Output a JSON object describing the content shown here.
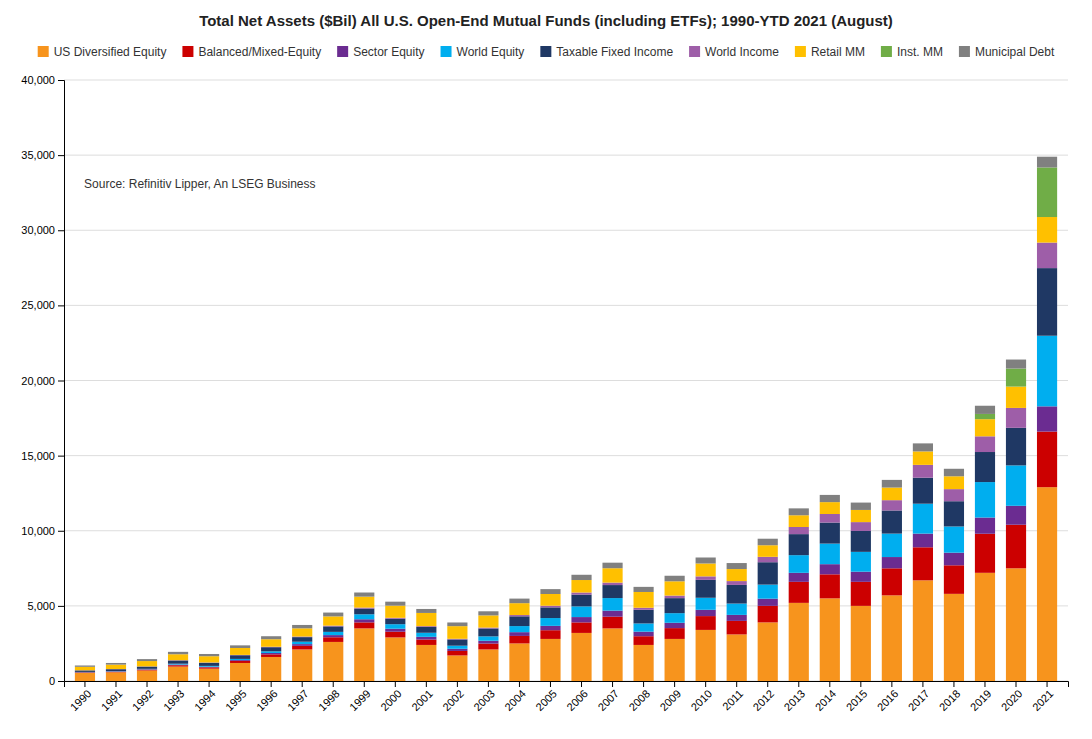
{
  "chart_data": {
    "type": "bar",
    "stacked": true,
    "title": "Total Net Assets ($Bil) All U.S. Open-End Mutual Funds (including ETFs); 1990-YTD 2021 (August)",
    "annotations": [
      "Source: Refinitiv Lipper, An LSEG Business"
    ],
    "categories": [
      "1990",
      "1991",
      "1992",
      "1993",
      "1994",
      "1995",
      "1996",
      "1997",
      "1998",
      "1999",
      "2000",
      "2001",
      "2002",
      "2003",
      "2004",
      "2005",
      "2006",
      "2007",
      "2008",
      "2009",
      "2010",
      "2011",
      "2012",
      "2013",
      "2014",
      "2015",
      "2016",
      "2017",
      "2018",
      "2019",
      "2020",
      "2021"
    ],
    "series": [
      {
        "name": "US Diversified Equity",
        "color": "#F7941D",
        "values": [
          540,
          580,
          700,
          960,
          820,
          1200,
          1600,
          2100,
          2600,
          3500,
          2900,
          2400,
          1700,
          2100,
          2500,
          2800,
          3200,
          3500,
          2400,
          2800,
          3400,
          3100,
          3900,
          5200,
          5500,
          5000,
          5700,
          6700,
          5800,
          7200,
          7500,
          12900
        ]
      },
      {
        "name": "Balanced/Mixed-Equity",
        "color": "#CC0000",
        "values": [
          30,
          40,
          55,
          90,
          90,
          130,
          175,
          240,
          310,
          400,
          380,
          360,
          300,
          390,
          500,
          580,
          700,
          780,
          580,
          720,
          920,
          900,
          1100,
          1400,
          1600,
          1600,
          1800,
          2200,
          1900,
          2600,
          2900,
          3700
        ]
      },
      {
        "name": "Sector Equity",
        "color": "#6B2C91",
        "values": [
          20,
          25,
          30,
          45,
          40,
          60,
          90,
          115,
          145,
          210,
          200,
          180,
          145,
          190,
          250,
          290,
          355,
          405,
          305,
          355,
          420,
          400,
          480,
          600,
          675,
          675,
          750,
          910,
          840,
          1080,
          1260,
          1680
        ]
      },
      {
        "name": "World Equity",
        "color": "#00AEEF",
        "values": [
          15,
          20,
          25,
          55,
          55,
          80,
          110,
          160,
          215,
          330,
          300,
          270,
          205,
          290,
          405,
          520,
          710,
          835,
          545,
          640,
          800,
          755,
          935,
          1175,
          1370,
          1320,
          1560,
          1990,
          1745,
          2360,
          2690,
          4700
        ]
      },
      {
        "name": "Taxable Fixed Income",
        "color": "#1F3864",
        "values": [
          100,
          120,
          150,
          215,
          210,
          245,
          275,
          305,
          365,
          380,
          365,
          385,
          415,
          525,
          650,
          710,
          785,
          865,
          910,
          1000,
          1190,
          1240,
          1490,
          1400,
          1400,
          1390,
          1540,
          1730,
          1680,
          2000,
          2500,
          4500
        ]
      },
      {
        "name": "World Income",
        "color": "#9E5EA8",
        "values": [
          8,
          10,
          12,
          20,
          18,
          22,
          30,
          40,
          50,
          65,
          60,
          55,
          45,
          60,
          85,
          110,
          140,
          165,
          135,
          170,
          235,
          255,
          360,
          475,
          570,
          590,
          685,
          855,
          805,
          1045,
          1325,
          1700
        ]
      },
      {
        "name": "Retail MM",
        "color": "#FFC000",
        "values": [
          230,
          295,
          355,
          395,
          415,
          460,
          500,
          545,
          615,
          730,
          810,
          880,
          840,
          810,
          790,
          780,
          830,
          955,
          1050,
          950,
          855,
          800,
          770,
          780,
          790,
          810,
          840,
          895,
          855,
          1140,
          1420,
          1700
        ]
      },
      {
        "name": "Inst. MM",
        "color": "#70AD47",
        "values": [
          0,
          0,
          0,
          0,
          0,
          0,
          0,
          0,
          0,
          0,
          0,
          0,
          0,
          0,
          0,
          0,
          0,
          0,
          0,
          0,
          0,
          0,
          0,
          0,
          0,
          0,
          0,
          0,
          0,
          350,
          1200,
          3300
        ]
      },
      {
        "name": "Municipal Debt",
        "color": "#808080",
        "values": [
          90,
          110,
          130,
          160,
          150,
          175,
          200,
          225,
          255,
          275,
          265,
          265,
          245,
          275,
          305,
          325,
          350,
          370,
          340,
          370,
          400,
          400,
          435,
          460,
          480,
          490,
          510,
          535,
          500,
          545,
          600,
          715
        ]
      }
    ],
    "ylim": [
      0,
      40000
    ],
    "yticks": [
      0,
      {
        "value": 5000,
        "label": "5,000"
      },
      {
        "value": 10000,
        "label": "10,000"
      },
      {
        "value": 15000,
        "label": "15,000"
      },
      {
        "value": 20000,
        "label": "20,000"
      },
      {
        "value": 25000,
        "label": "25,000"
      },
      {
        "value": 30000,
        "label": "30,000"
      },
      {
        "value": 35000,
        "label": "35,000"
      },
      {
        "value": 40000,
        "label": "40,000"
      }
    ],
    "grid": true,
    "legend": "top"
  }
}
